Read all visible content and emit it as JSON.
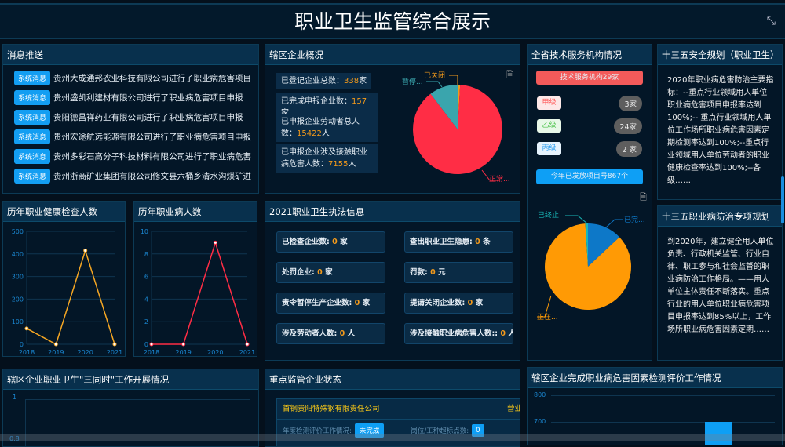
{
  "header": {
    "title": "职业卫生监管综合展示",
    "fullscreen_icon": "collapse-icon"
  },
  "messages": {
    "title": "消息推送",
    "tag": "系统消息",
    "items": [
      "贵州大成通邦农业科技有限公司进行了职业病危害项目申报",
      "贵州盛凯利建材有限公司进行了职业病危害项目申报",
      "贵阳德昌祥药业有限公司进行了职业病危害项目申报",
      "贵州宏途航远能源有限公司进行了职业病危害项目申报",
      "贵州多彩石高分子科技材料有限公司进行了职业病危害项目申报",
      "贵州浙商矿业集团有限公司修文县六桶乡清水沟煤矿进行了职业病危害项目申报"
    ]
  },
  "overview": {
    "title": "辖区企业概况",
    "stats": [
      {
        "label": "已登记企业总数：",
        "value": "338",
        "unit": "家"
      },
      {
        "label": "已完成申报企业数：",
        "value": "157",
        "unit": "家"
      },
      {
        "label": "已申报企业劳动者总人数：",
        "value": "15422",
        "unit": "人"
      },
      {
        "label": "已申报企业涉及接触职业病危害人数：",
        "value": "7155",
        "unit": "人"
      }
    ],
    "pie": {
      "type": "pie",
      "slices": [
        {
          "name": "已关闭",
          "label": "已关闭",
          "value": 3,
          "color": "#f39a1b"
        },
        {
          "name": "正常",
          "label": "正常...",
          "value": 300,
          "color": "#ff2d45"
        },
        {
          "name": "暂停",
          "label": "暂停...",
          "value": 35,
          "color": "#3aa5ad"
        }
      ]
    }
  },
  "agencies": {
    "title": "全省技术服务机构情况",
    "total": "技术服务机构29家",
    "levels": [
      {
        "label": "甲级",
        "count": "3家",
        "color": "#ff5a5a",
        "bg": "#fde8e8"
      },
      {
        "label": "乙级",
        "count": "24家",
        "color": "#4cc24c",
        "bg": "#e8f8e8"
      },
      {
        "label": "丙级",
        "count": "2 家",
        "color": "#2a9ef0",
        "bg": "#e6f3fd"
      }
    ],
    "issued": "今年已发放项目号867个",
    "pie": {
      "type": "pie",
      "slices": [
        {
          "name": "已完成",
          "label": "已完...",
          "value": 13,
          "color": "#0d78c8"
        },
        {
          "name": "正在",
          "label": "正在...",
          "value": 86,
          "color": "#ff9a05"
        },
        {
          "name": "已终止",
          "label": "已终止",
          "value": 1,
          "color": "#19b8b8"
        }
      ]
    }
  },
  "plan1": {
    "title": "十三五安全规划（职业卫生）",
    "text": "2020年职业病危害防治主要指标：--重点行业领域用人单位职业病危害项目申报率达到100%;-- 重点行业领域用人单位工作场所职业病危害因素定期检测率达到100%;--重点行业领域用人单位劳动者的职业健康检查率达到100%;--各级……"
  },
  "plan2": {
    "title": "十三五职业病防治专项规划",
    "text": "到2020年，建立健全用人单位负责、行政机关监管、行业自律、职工参与和社会监督的职业病防治工作格局。——用人单位主体责任不断落实。重点行业的用人单位职业病危害项目申报率达到85%以上，工作场所职业病危害因素定期……"
  },
  "chart_data": [
    {
      "type": "line",
      "title": "历年职业健康检查人数",
      "categories": [
        "2018",
        "2019",
        "2020",
        "2021"
      ],
      "values": [
        70,
        0,
        415,
        0
      ],
      "ylim": [
        0,
        500
      ],
      "yticks": [
        "0",
        "100",
        "200",
        "300",
        "400",
        "500"
      ],
      "color": "#f5a623",
      "grid": true
    },
    {
      "type": "line",
      "title": "历年职业病人数",
      "categories": [
        "2018",
        "2019",
        "2020",
        "2021"
      ],
      "values": [
        0,
        0,
        9,
        0
      ],
      "ylim": [
        0,
        10
      ],
      "yticks": [
        "0",
        "2",
        "4",
        "6",
        "8",
        "10"
      ],
      "color": "#ff2d45",
      "grid": true
    }
  ],
  "enforcement": {
    "title": "2021职业卫生执法信息",
    "items": [
      {
        "label": "已检查企业数:",
        "value": "0",
        "unit": "家"
      },
      {
        "label": "查出职业卫生隐患:",
        "value": "0",
        "unit": "条"
      },
      {
        "label": "处罚企业:",
        "value": "0",
        "unit": "家"
      },
      {
        "label": "罚款:",
        "value": "0",
        "unit": "元"
      },
      {
        "label": "责令暂停生产企业数:",
        "value": "0",
        "unit": "家"
      },
      {
        "label": "提请关闭企业数:",
        "value": "0",
        "unit": "家"
      },
      {
        "label": "涉及劳动者人数:",
        "value": "0",
        "unit": "人"
      },
      {
        "label": "涉及接触职业病危害人数::",
        "value": "0",
        "unit": "人"
      }
    ]
  },
  "bottom": {
    "three": {
      "title": "辖区企业职业卫生\"三同时\"工作开展情况",
      "yticks": [
        "1",
        "0.8"
      ]
    },
    "key": {
      "title": "重点监管企业状态",
      "company": "首钢贵阳特殊钢有限责任公司",
      "status": "营业",
      "eval_label": "年度检测评价工作情况:",
      "eval_value": "未完成",
      "over_label": "岗位/工种超标点数:",
      "over_value": "0"
    },
    "eval": {
      "title": "辖区企业完成职业病危害因素检测评价工作情况",
      "yticks": [
        "800",
        "700"
      ]
    }
  }
}
